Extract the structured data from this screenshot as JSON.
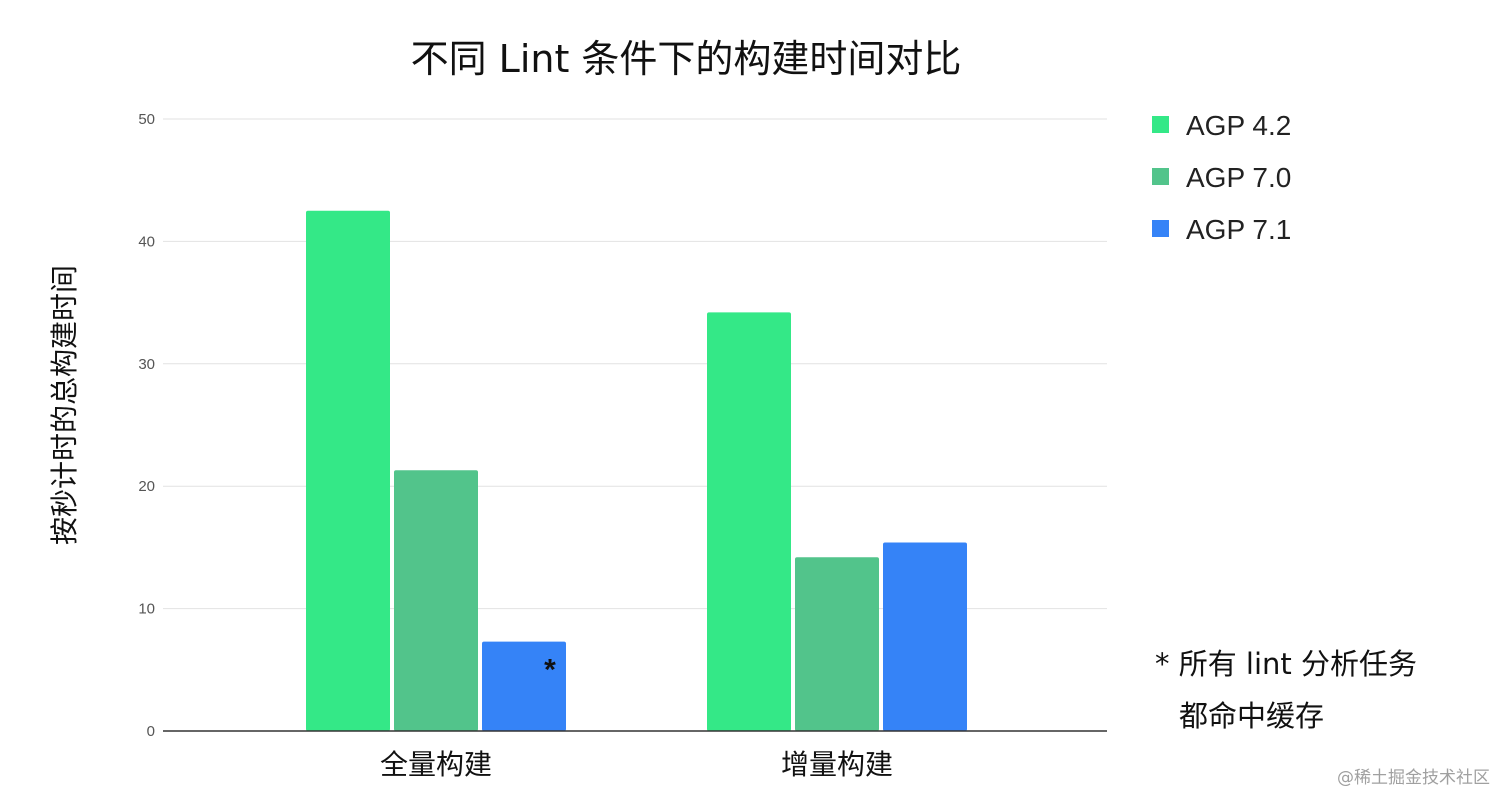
{
  "chart_data": {
    "type": "bar",
    "title": "不同 Lint 条件下的构建时间对比",
    "ylabel": "按秒计时的总构建时间",
    "xlabel": "",
    "ylim": [
      0,
      50
    ],
    "yticks": [
      "0",
      "10",
      "20",
      "30",
      "40",
      "50"
    ],
    "categories": [
      "全量构建",
      "增量构建"
    ],
    "series": [
      {
        "name": "AGP 4.2",
        "color": "#34e887",
        "values": [
          42.5,
          34.2
        ]
      },
      {
        "name": "AGP 7.0",
        "color": "#52c48b",
        "values": [
          21.3,
          14.2
        ]
      },
      {
        "name": "AGP 7.1",
        "color": "#3583f7",
        "values": [
          7.3,
          15.4
        ]
      }
    ],
    "grid": true,
    "legend_position": "right",
    "annotation": {
      "marker": "*",
      "series": "AGP 7.1",
      "category": "全量构建"
    }
  },
  "footnote": {
    "line1": "* 所有 lint 分析任务",
    "line2": "都命中缓存"
  },
  "watermark": "@稀土掘金技术社区"
}
